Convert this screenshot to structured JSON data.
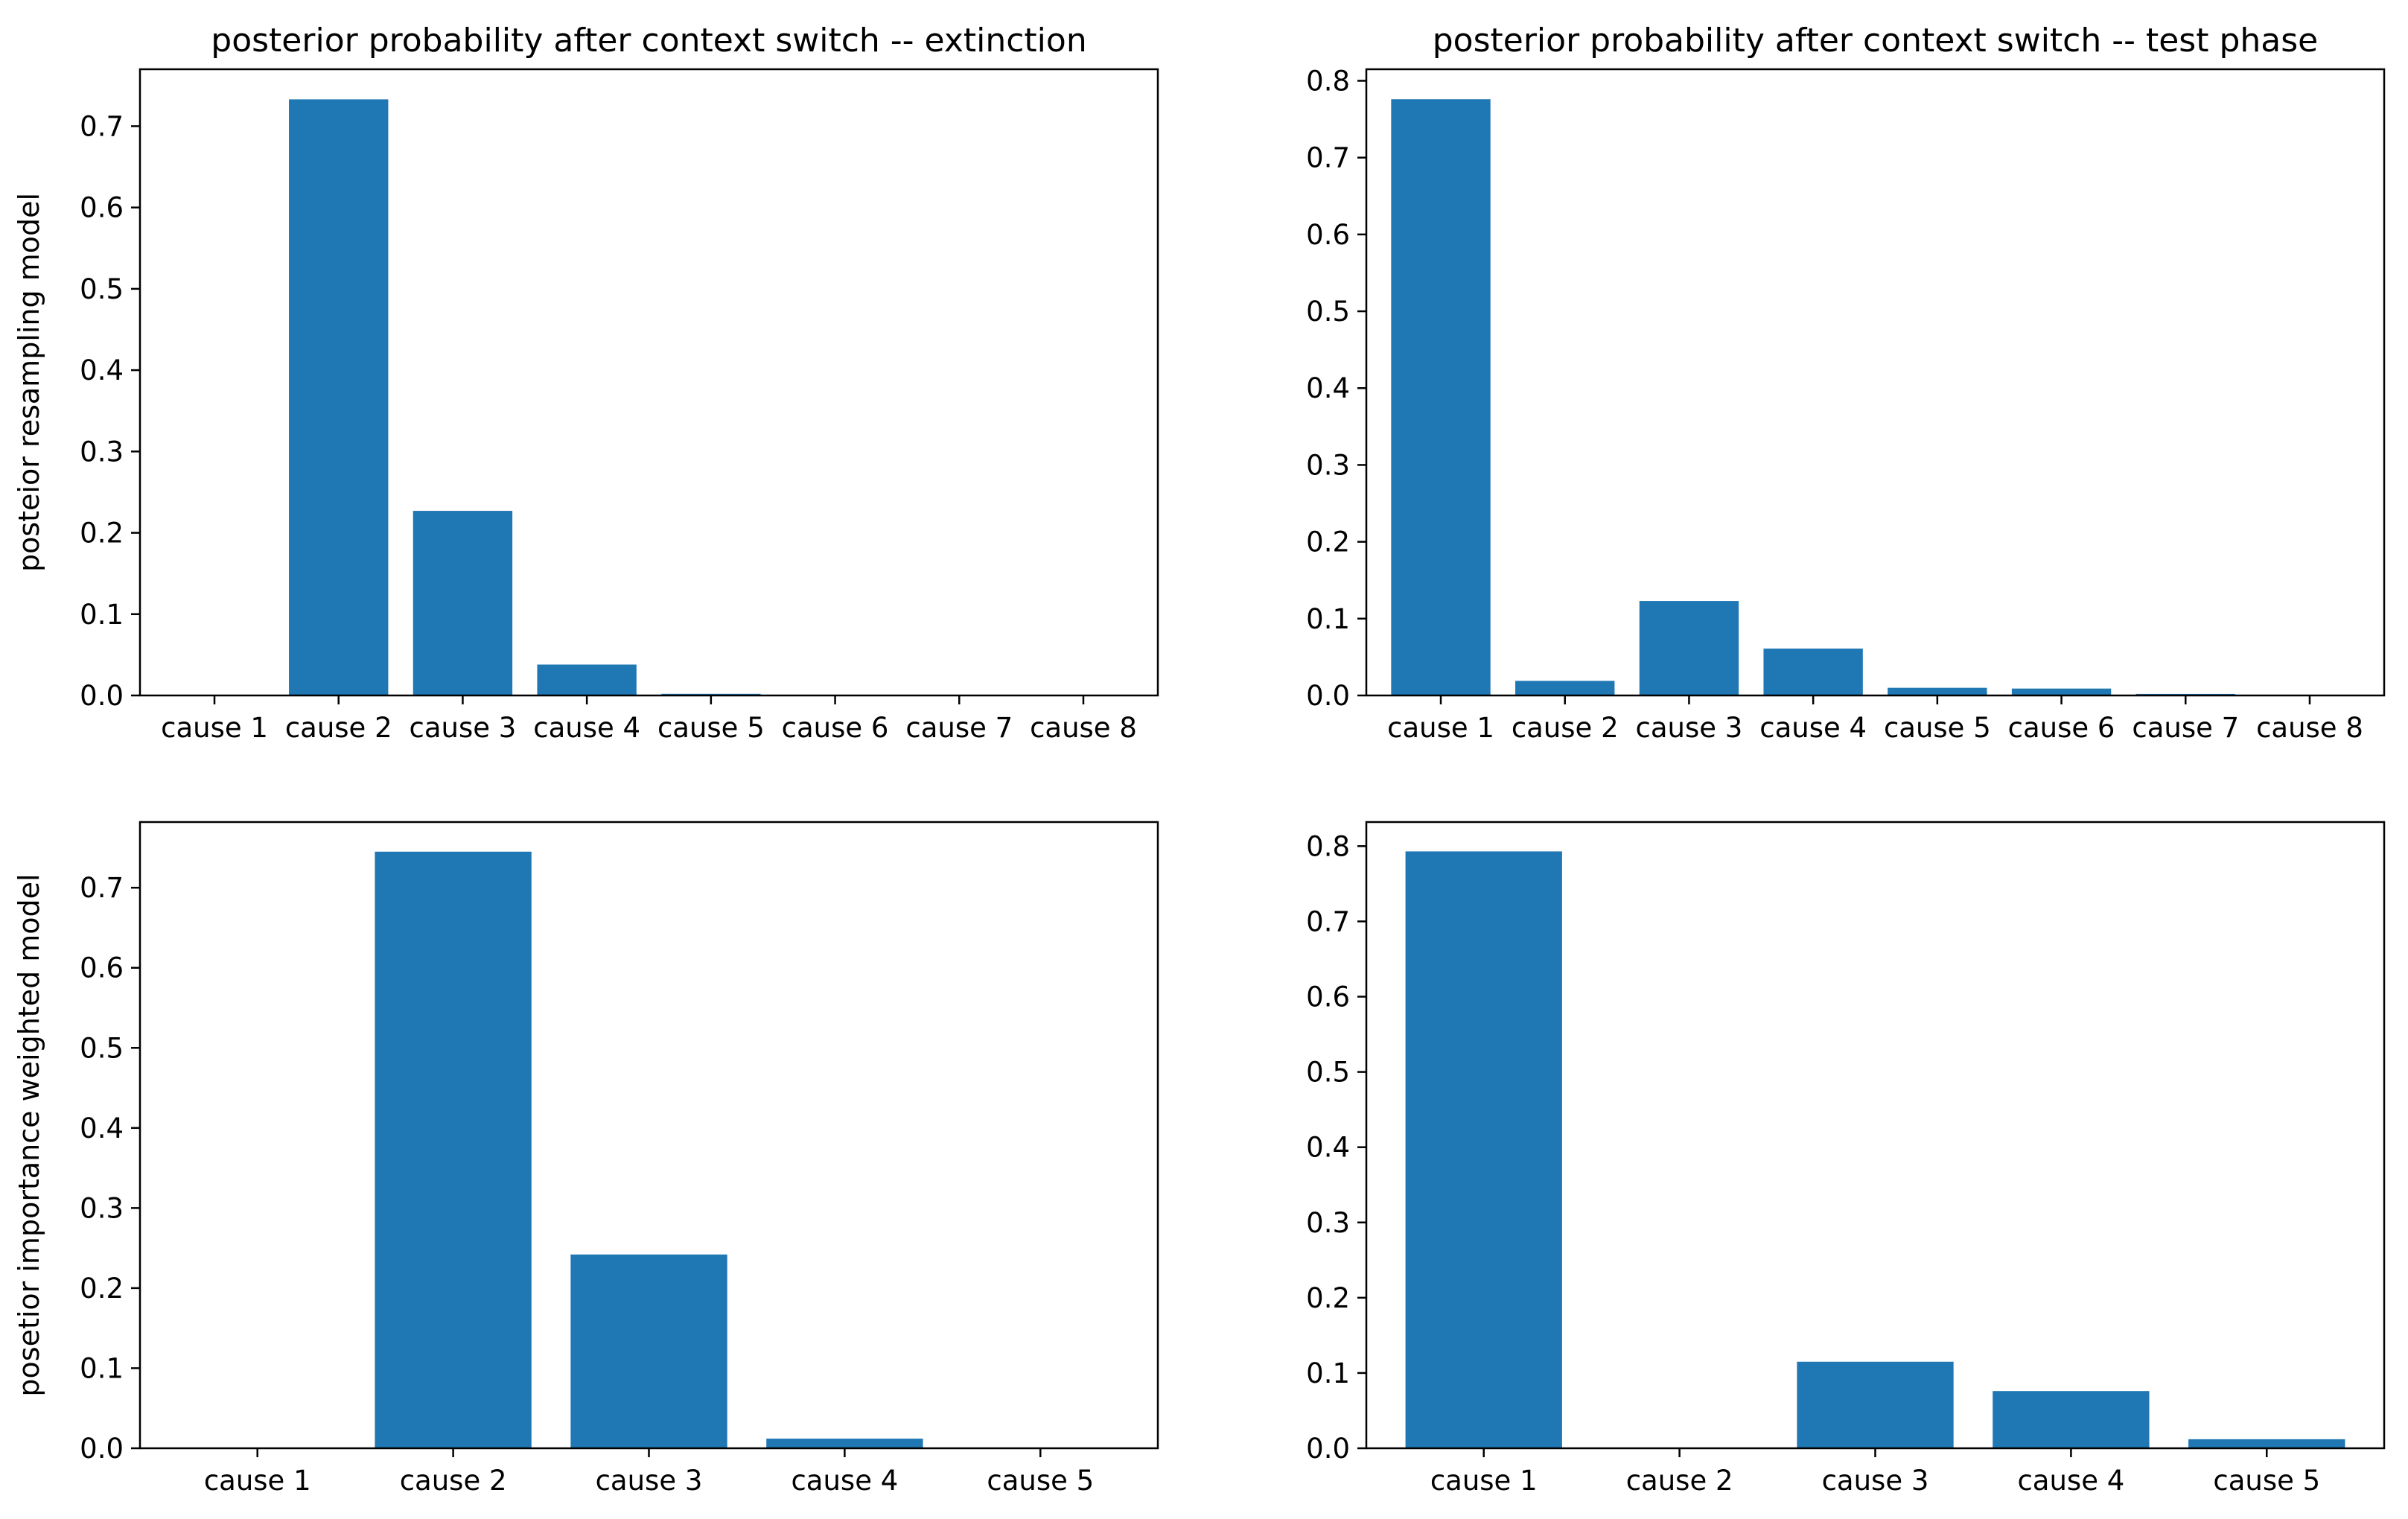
{
  "figure": {
    "bar_color": "#1f77b4"
  },
  "chart_data": [
    {
      "type": "bar",
      "title": "posterior probability after context switch -- extinction",
      "xlabel": "",
      "ylabel": "posteior resampling model",
      "categories": [
        "cause 1",
        "cause 2",
        "cause 3",
        "cause 4",
        "cause 5",
        "cause 6",
        "cause 7",
        "cause 8"
      ],
      "values": [
        0.0,
        0.733,
        0.227,
        0.038,
        0.002,
        0.0,
        0.0,
        0.0
      ],
      "ylim": [
        0,
        0.77
      ],
      "yticks": [
        0.0,
        0.1,
        0.2,
        0.3,
        0.4,
        0.5,
        0.6,
        0.7
      ],
      "ytick_labels": [
        "0.0",
        "0.1",
        "0.2",
        "0.3",
        "0.4",
        "0.5",
        "0.6",
        "0.7"
      ],
      "grid": false,
      "legend": "none"
    },
    {
      "type": "bar",
      "title": "posterior probability after context switch -- test phase",
      "xlabel": "",
      "ylabel": "",
      "categories": [
        "cause 1",
        "cause 2",
        "cause 3",
        "cause 4",
        "cause 5",
        "cause 6",
        "cause 7",
        "cause 8"
      ],
      "values": [
        0.776,
        0.019,
        0.123,
        0.061,
        0.01,
        0.009,
        0.002,
        0.0
      ],
      "ylim": [
        0,
        0.815
      ],
      "yticks": [
        0.0,
        0.1,
        0.2,
        0.3,
        0.4,
        0.5,
        0.6,
        0.7,
        0.8
      ],
      "ytick_labels": [
        "0.0",
        "0.1",
        "0.2",
        "0.3",
        "0.4",
        "0.5",
        "0.6",
        "0.7",
        "0.8"
      ],
      "grid": false,
      "legend": "none"
    },
    {
      "type": "bar",
      "title": "",
      "xlabel": "",
      "ylabel": "posetior importance weighted model",
      "categories": [
        "cause 1",
        "cause 2",
        "cause 3",
        "cause 4",
        "cause 5"
      ],
      "values": [
        0.0,
        0.745,
        0.242,
        0.012,
        0.0
      ],
      "ylim": [
        0,
        0.782
      ],
      "yticks": [
        0.0,
        0.1,
        0.2,
        0.3,
        0.4,
        0.5,
        0.6,
        0.7
      ],
      "ytick_labels": [
        "0.0",
        "0.1",
        "0.2",
        "0.3",
        "0.4",
        "0.5",
        "0.6",
        "0.7"
      ],
      "grid": false,
      "legend": "none"
    },
    {
      "type": "bar",
      "title": "",
      "xlabel": "",
      "ylabel": "",
      "categories": [
        "cause 1",
        "cause 2",
        "cause 3",
        "cause 4",
        "cause 5"
      ],
      "values": [
        0.793,
        0.0,
        0.115,
        0.076,
        0.012
      ],
      "ylim": [
        0,
        0.832
      ],
      "yticks": [
        0.0,
        0.1,
        0.2,
        0.3,
        0.4,
        0.5,
        0.6,
        0.7,
        0.8
      ],
      "ytick_labels": [
        "0.0",
        "0.1",
        "0.2",
        "0.3",
        "0.4",
        "0.5",
        "0.6",
        "0.7",
        "0.8"
      ],
      "grid": false,
      "legend": "none"
    }
  ]
}
